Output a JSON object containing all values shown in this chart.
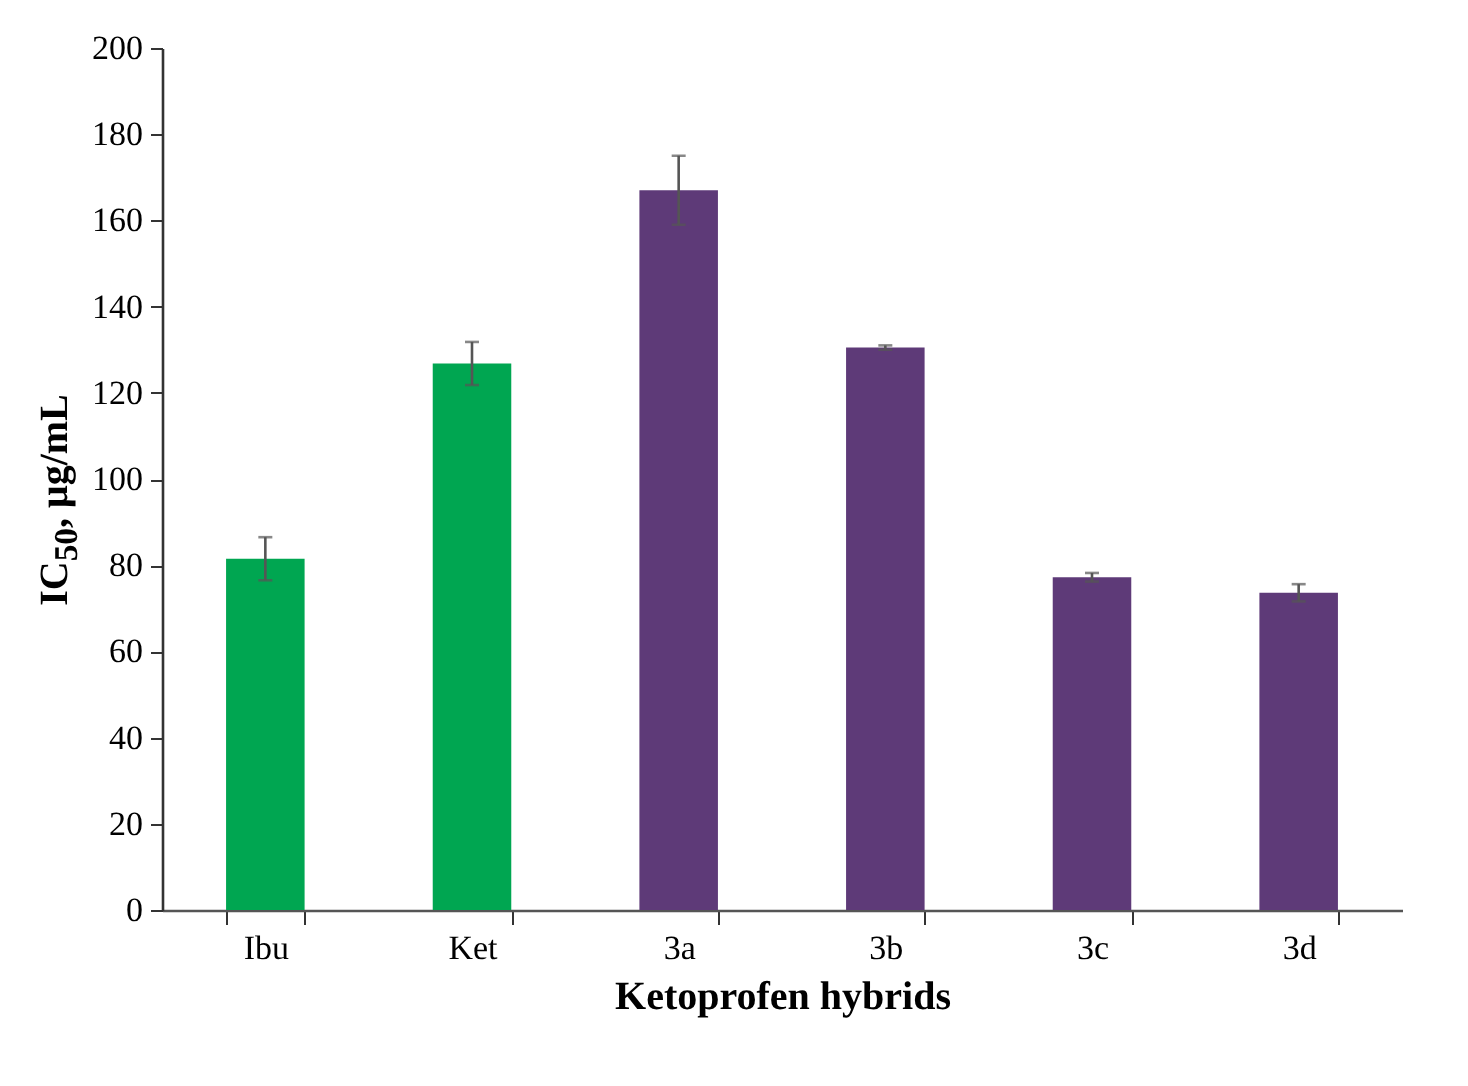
{
  "chart_data": {
    "type": "bar",
    "xlabel": "Ketoprofen hybrids",
    "ylabel": "IC$_{50}$, μg/mL",
    "categories": [
      "Ibu",
      "Ket",
      "3a",
      "3b",
      "3c",
      "3d"
    ],
    "values": [
      81.5,
      126.8,
      167,
      130.5,
      77.2,
      73.6
    ],
    "errors": [
      5,
      5,
      8,
      0.5,
      1,
      2
    ],
    "colors": [
      "#00a651",
      "#00a651",
      "#5e3a78",
      "#5e3a78",
      "#5e3a78",
      "#5e3a78"
    ],
    "ylim": [
      0,
      200
    ],
    "yticks": [
      0,
      20,
      40,
      60,
      80,
      100,
      120,
      140,
      160,
      180,
      200
    ],
    "grid": false,
    "legend": false
  }
}
